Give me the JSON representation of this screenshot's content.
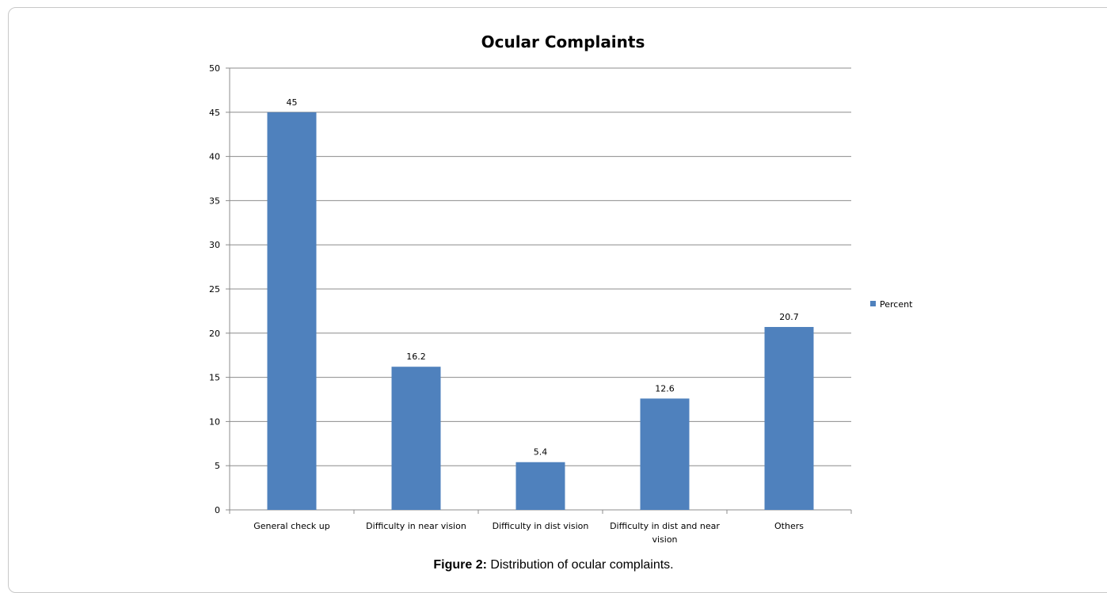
{
  "chart_data": {
    "type": "bar",
    "title": "Ocular Complaints",
    "categories": [
      [
        "General check up"
      ],
      [
        "Difficulty in near vision"
      ],
      [
        "Difficulty in dist vision"
      ],
      [
        "Difficulty in dist and near",
        "vision"
      ],
      [
        "Others"
      ]
    ],
    "series": [
      {
        "name": "Percent",
        "values": [
          45,
          16.2,
          5.4,
          12.6,
          20.7
        ],
        "labels": [
          "45",
          "16.2",
          "5.4",
          "12.6",
          "20.7"
        ],
        "color": "#4f81bd"
      }
    ],
    "ylim": [
      0,
      50
    ],
    "yticks": [
      0,
      5,
      10,
      15,
      20,
      25,
      30,
      35,
      40,
      45,
      50
    ],
    "grid": true,
    "gridline_color": "#8c8c8c",
    "legend_position": "right"
  },
  "caption": {
    "label": "Figure 2:",
    "text": " Distribution of ocular complaints."
  }
}
